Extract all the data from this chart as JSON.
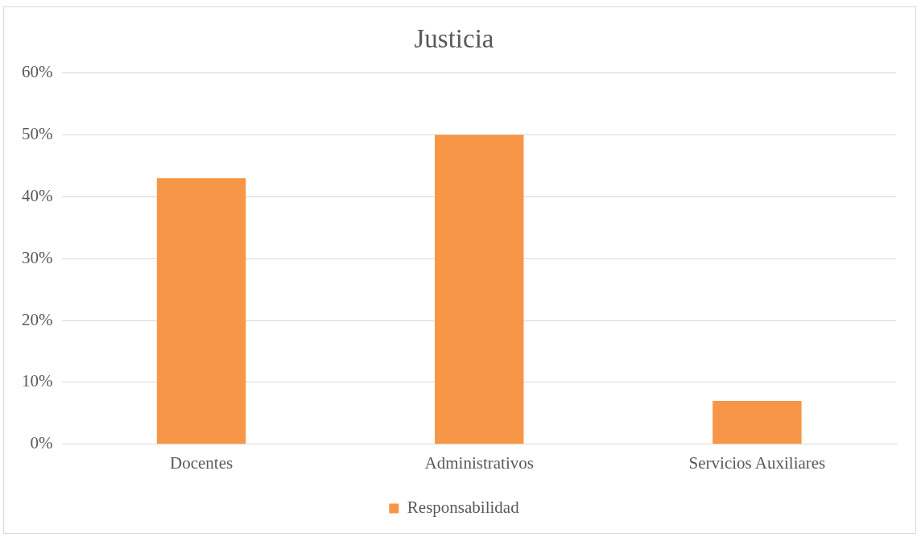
{
  "chart_data": {
    "type": "bar",
    "title": "Justicia",
    "categories": [
      "Docentes",
      "Administrativos",
      "Servicios Auxiliares"
    ],
    "series": [
      {
        "name": "Responsabilidad",
        "color": "#f79646",
        "values": [
          43,
          50,
          7
        ]
      }
    ],
    "ylim": [
      0,
      60
    ],
    "yticks": [
      {
        "value": 0,
        "label": "0%"
      },
      {
        "value": 10,
        "label": "10%"
      },
      {
        "value": 20,
        "label": "20%"
      },
      {
        "value": 30,
        "label": "30%"
      },
      {
        "value": 40,
        "label": "40%"
      },
      {
        "value": 50,
        "label": "50%"
      },
      {
        "value": 60,
        "label": "60%"
      }
    ],
    "grid": "y",
    "legend": "bottom"
  }
}
